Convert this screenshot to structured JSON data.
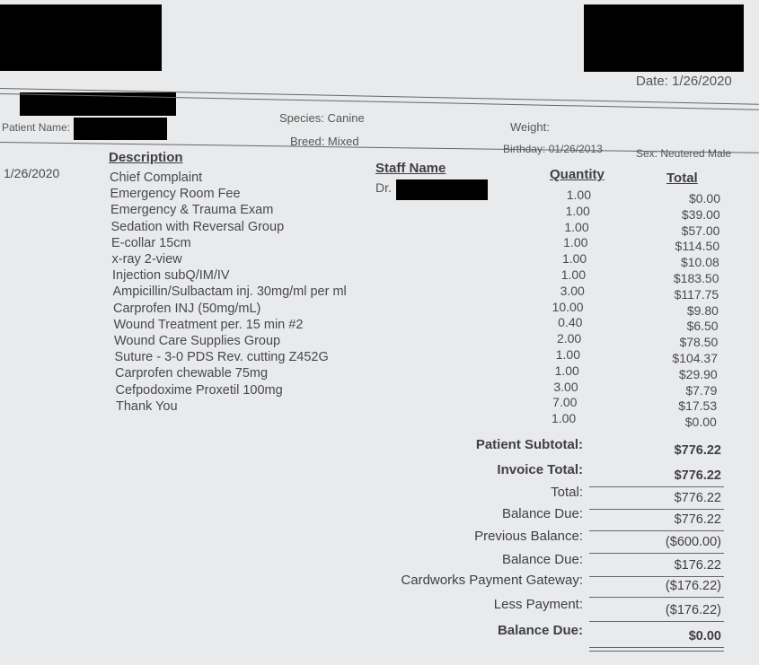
{
  "header": {
    "date_label": "Date: 1/26/2020",
    "patient_name_label": "Patient Name:",
    "species": "Species: Canine",
    "breed": "Breed: Mixed",
    "weight": "Weight:",
    "birthday": "Birthday: 01/26/2013",
    "sex": "Sex: Neutered Male"
  },
  "columns": {
    "description": "Description",
    "staff_name": "Staff Name",
    "quantity": "Quantity",
    "total": "Total"
  },
  "service_date": "1/26/2020",
  "staff": "Dr.",
  "items": [
    {
      "description": "Chief Complaint",
      "quantity": "1.00",
      "total": "$0.00"
    },
    {
      "description": "Emergency Room Fee",
      "quantity": "1.00",
      "total": "$39.00"
    },
    {
      "description": "Emergency &  Trauma Exam",
      "quantity": "1.00",
      "total": "$57.00"
    },
    {
      "description": "Sedation with Reversal Group",
      "quantity": "1.00",
      "total": "$114.50"
    },
    {
      "description": "E-collar 15cm",
      "quantity": "1.00",
      "total": "$10.08"
    },
    {
      "description": "x-ray 2-view",
      "quantity": "1.00",
      "total": "$183.50"
    },
    {
      "description": "Injection subQ/IM/IV",
      "quantity": "3.00",
      "total": "$117.75"
    },
    {
      "description": "Ampicillin/Sulbactam inj. 30mg/ml per ml",
      "quantity": "10.00",
      "total": "$9.80"
    },
    {
      "description": "Carprofen INJ (50mg/mL)",
      "quantity": "0.40",
      "total": "$6.50"
    },
    {
      "description": "Wound Treatment per. 15 min #2",
      "quantity": "2.00",
      "total": "$78.50"
    },
    {
      "description": "Wound Care Supplies Group",
      "quantity": "1.00",
      "total": "$104.37"
    },
    {
      "description": "Suture - 3-0 PDS Rev. cutting Z452G",
      "quantity": "1.00",
      "total": "$29.90"
    },
    {
      "description": "Carprofen chewable 75mg",
      "quantity": "3.00",
      "total": "$7.79"
    },
    {
      "description": "Cefpodoxime Proxetil 100mg",
      "quantity": "7.00",
      "total": "$17.53"
    },
    {
      "description": "Thank You",
      "quantity": "1.00",
      "total": "$0.00"
    }
  ],
  "summary": [
    {
      "label": "Patient Subtotal:",
      "value": "$776.22",
      "bold": true
    },
    {
      "label": "Invoice Total:",
      "value": "$776.22",
      "bold": true
    },
    {
      "label": "Total:",
      "value": "$776.22",
      "bold": false
    },
    {
      "label": "Balance Due:",
      "value": "$776.22",
      "bold": false
    },
    {
      "label": "Previous Balance:",
      "value": "($600.00)",
      "bold": false
    },
    {
      "label": "Balance Due:",
      "value": "$176.22",
      "bold": false
    },
    {
      "label": "Cardworks Payment Gateway:",
      "value": "($176.22)",
      "bold": false
    },
    {
      "label": "Less Payment:",
      "value": "($176.22)",
      "bold": false
    },
    {
      "label": "Balance Due:",
      "value": "$0.00",
      "bold": true
    }
  ]
}
